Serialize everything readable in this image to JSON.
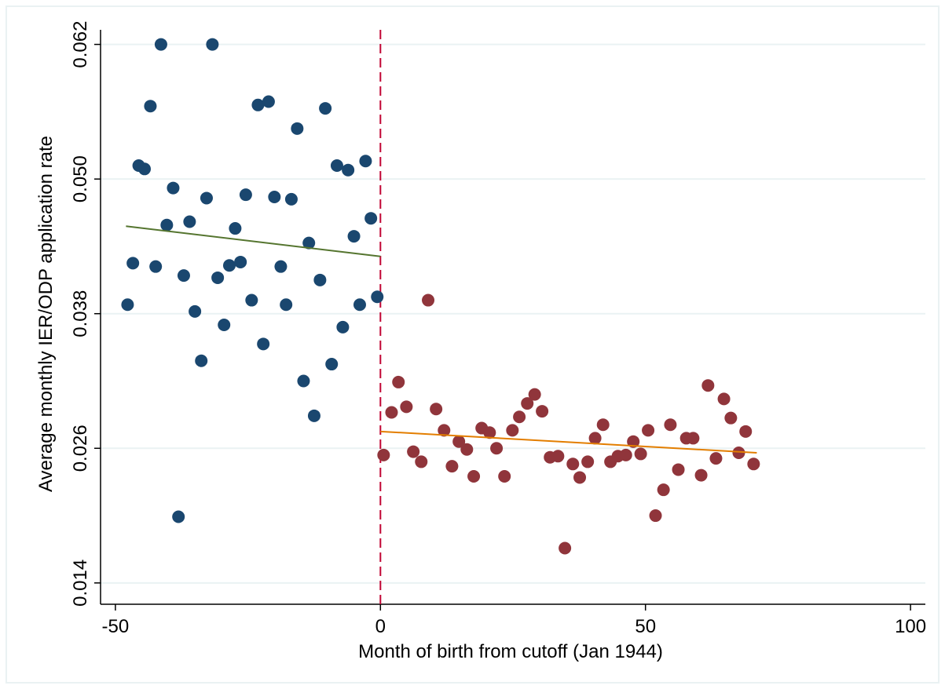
{
  "chart_data": {
    "type": "scatter",
    "xlabel": "Month of birth from cutoff (Jan 1944)",
    "ylabel": "Average monthly IER/ODP application rate",
    "xlim": [
      -52.8,
      102.8
    ],
    "ylim": [
      0.0121,
      0.0633
    ],
    "xticks": [
      -50,
      0,
      50,
      100
    ],
    "yticks": [
      0.014,
      0.026,
      0.038,
      {
        "value": 0.05,
        "label": "0.050"
      },
      0.062
    ],
    "grid": true,
    "series": [
      {
        "color": "#1a476f",
        "x": [
          -47.7,
          -46.7,
          -45.6,
          -44.5,
          -43.4,
          -42.4,
          -41.4,
          -40.3,
          -39.1,
          -38.1,
          -37.1,
          -36.0,
          -35.0,
          -33.8,
          -32.8,
          -31.7,
          -30.7,
          -29.5,
          -28.5,
          -27.4,
          -26.4,
          -25.4,
          -24.3,
          -23.1,
          -22.1,
          -21.1,
          -20.0,
          -18.8,
          -17.8,
          -16.8,
          -15.7,
          -14.5,
          -13.5,
          -12.5,
          -11.4,
          -10.4,
          -9.2,
          -8.2,
          -7.1,
          -6.1,
          -5.0,
          -3.9,
          -2.8,
          -1.8,
          -0.6
        ],
        "values": [
          0.0388,
          0.0425,
          0.0512,
          0.0509,
          0.0565,
          0.0422,
          0.062,
          0.0459,
          0.0492,
          0.0199,
          0.0414,
          0.0462,
          0.0382,
          0.0338,
          0.0483,
          0.062,
          0.0412,
          0.037,
          0.0423,
          0.0456,
          0.0426,
          0.0486,
          0.0392,
          0.0566,
          0.0353,
          0.0569,
          0.0484,
          0.0422,
          0.0388,
          0.0482,
          0.0545,
          0.032,
          0.0443,
          0.0289,
          0.041,
          0.0563,
          0.0335,
          0.0512,
          0.0368,
          0.0508,
          0.0449,
          0.0388,
          0.0516,
          0.0465,
          0.0395
        ]
      },
      {
        "color": "#90353b",
        "x": [
          0.6,
          2.1,
          3.4,
          4.9,
          6.2,
          7.7,
          9.0,
          10.5,
          12.0,
          13.5,
          14.8,
          16.3,
          17.6,
          19.1,
          20.6,
          21.9,
          23.4,
          24.9,
          26.2,
          27.7,
          29.1,
          30.5,
          32.0,
          33.5,
          34.8,
          36.3,
          37.6,
          39.1,
          40.5,
          42.0,
          43.4,
          44.8,
          46.3,
          47.7,
          49.1,
          50.5,
          51.9,
          53.4,
          54.7,
          56.2,
          57.7,
          59.0,
          60.5,
          61.8,
          63.3,
          64.8,
          66.1,
          67.6,
          68.9,
          70.4
        ],
        "values": [
          0.0254,
          0.0292,
          0.0319,
          0.0297,
          0.0257,
          0.0248,
          0.0392,
          0.0295,
          0.0276,
          0.0244,
          0.0266,
          0.0259,
          0.0235,
          0.0278,
          0.0274,
          0.026,
          0.0235,
          0.0276,
          0.0288,
          0.03,
          0.0308,
          0.0293,
          0.0252,
          0.0253,
          0.0171,
          0.0246,
          0.0234,
          0.0248,
          0.0269,
          0.0281,
          0.0248,
          0.0253,
          0.0254,
          0.0266,
          0.0255,
          0.0276,
          0.02,
          0.0223,
          0.0281,
          0.0241,
          0.0269,
          0.0269,
          0.0236,
          0.0316,
          0.0251,
          0.0304,
          0.0287,
          0.0256,
          0.0275,
          0.0246
        ]
      }
    ],
    "fit_lines": [
      {
        "color": "#55752f",
        "x": [
          -48,
          0
        ],
        "values": [
          0.0458,
          0.0431
        ]
      },
      {
        "color": "#e37e00",
        "x": [
          0,
          71
        ],
        "values": [
          0.0275,
          0.0256
        ]
      }
    ],
    "cutoff_line": {
      "x": 0,
      "color": "#c10534"
    }
  }
}
